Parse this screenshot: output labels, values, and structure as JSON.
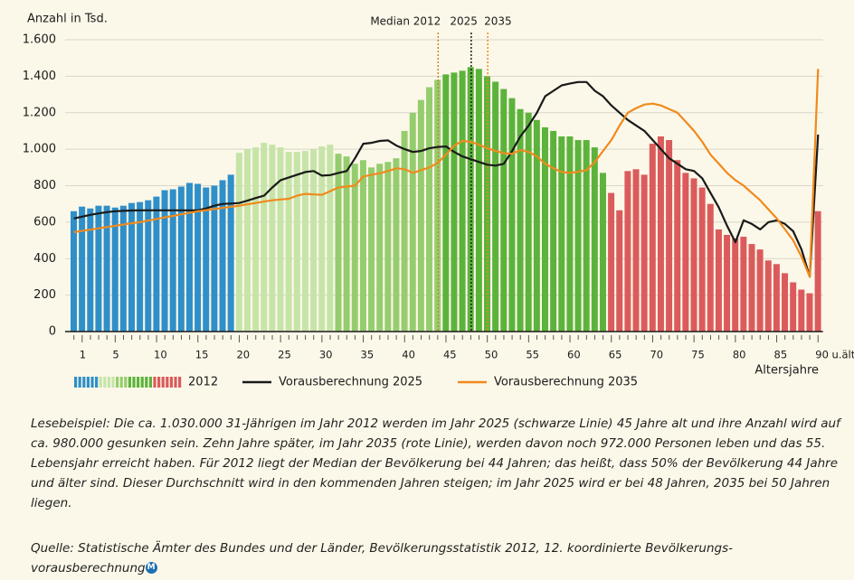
{
  "chart_data": {
    "type": "bar",
    "y_axis_label": "Anzahl in Tsd.",
    "x_axis_label": "Altersjahre",
    "ylim": [
      0,
      1600
    ],
    "yticks": [
      0,
      {
        "value": 200,
        "label": "200"
      },
      {
        "value": 400,
        "label": "400"
      },
      {
        "value": 600,
        "label": "600"
      },
      {
        "value": 800,
        "label": "800"
      },
      {
        "value": 1000,
        "label": "1.000"
      },
      {
        "value": 1200,
        "label": "1.200"
      },
      {
        "value": 1400,
        "label": "1.400"
      },
      {
        "value": 1600,
        "label": "1.600"
      }
    ],
    "grid": true,
    "categories": [
      null,
      "1",
      null,
      null,
      null,
      "5",
      null,
      null,
      null,
      null,
      "10",
      null,
      null,
      null,
      null,
      "15",
      null,
      null,
      null,
      null,
      "20",
      null,
      null,
      null,
      null,
      "25",
      null,
      null,
      null,
      null,
      "30",
      null,
      null,
      null,
      null,
      "35",
      null,
      null,
      null,
      null,
      "40",
      null,
      null,
      null,
      null,
      "45",
      null,
      null,
      null,
      null,
      "50",
      null,
      null,
      null,
      null,
      "55",
      null,
      null,
      null,
      null,
      "60",
      null,
      null,
      null,
      null,
      "65",
      null,
      null,
      null,
      null,
      "70",
      null,
      null,
      null,
      null,
      "75",
      null,
      null,
      null,
      null,
      "80",
      null,
      null,
      null,
      null,
      "85",
      null,
      null,
      null,
      null,
      "90 u.älter"
    ],
    "series": [
      {
        "name": "2012",
        "type": "bar",
        "values": [
          660,
          685,
          675,
          690,
          690,
          680,
          690,
          705,
          710,
          720,
          740,
          775,
          780,
          795,
          815,
          810,
          790,
          800,
          830,
          860,
          980,
          1000,
          1010,
          1035,
          1025,
          1010,
          985,
          985,
          990,
          1000,
          1015,
          1025,
          975,
          960,
          920,
          940,
          900,
          920,
          930,
          950,
          1100,
          1200,
          1270,
          1340,
          1380,
          1410,
          1420,
          1430,
          1450,
          1440,
          1400,
          1370,
          1330,
          1280,
          1220,
          1200,
          1160,
          1120,
          1100,
          1070,
          1070,
          1050,
          1050,
          1010,
          870,
          760,
          665,
          880,
          890,
          860,
          1030,
          1070,
          1050,
          940,
          870,
          840,
          790,
          700,
          560,
          530,
          510,
          520,
          480,
          450,
          390,
          370,
          320,
          270,
          230,
          210,
          660
        ],
        "colors": [
          "#2f8fc9",
          "#2f8fc9",
          "#2f8fc9",
          "#2f8fc9",
          "#2f8fc9",
          "#2f8fc9",
          "#2f8fc9",
          "#2f8fc9",
          "#2f8fc9",
          "#2f8fc9",
          "#2f8fc9",
          "#2f8fc9",
          "#2f8fc9",
          "#2f8fc9",
          "#2f8fc9",
          "#2f8fc9",
          "#2f8fc9",
          "#2f8fc9",
          "#2f8fc9",
          "#2f8fc9",
          "#c6e4a8",
          "#c6e4a8",
          "#c6e4a8",
          "#c6e4a8",
          "#c6e4a8",
          "#c6e4a8",
          "#c6e4a8",
          "#c6e4a8",
          "#c6e4a8",
          "#c6e4a8",
          "#c6e4a8",
          "#c6e4a8",
          "#95cd6e",
          "#95cd6e",
          "#95cd6e",
          "#95cd6e",
          "#95cd6e",
          "#95cd6e",
          "#95cd6e",
          "#95cd6e",
          "#95cd6e",
          "#95cd6e",
          "#95cd6e",
          "#95cd6e",
          "#95cd6e",
          "#5cb33c",
          "#5cb33c",
          "#5cb33c",
          "#5cb33c",
          "#5cb33c",
          "#5cb33c",
          "#5cb33c",
          "#5cb33c",
          "#5cb33c",
          "#5cb33c",
          "#5cb33c",
          "#5cb33c",
          "#5cb33c",
          "#5cb33c",
          "#5cb33c",
          "#5cb33c",
          "#5cb33c",
          "#5cb33c",
          "#5cb33c",
          "#5cb33c",
          "#db5b5c",
          "#db5b5c",
          "#db5b5c",
          "#db5b5c",
          "#db5b5c",
          "#db5b5c",
          "#db5b5c",
          "#db5b5c",
          "#db5b5c",
          "#db5b5c",
          "#db5b5c",
          "#db5b5c",
          "#db5b5c",
          "#db5b5c",
          "#db5b5c",
          "#db5b5c",
          "#db5b5c",
          "#db5b5c",
          "#db5b5c",
          "#db5b5c",
          "#db5b5c",
          "#db5b5c",
          "#db5b5c",
          "#db5b5c",
          "#db5b5c",
          "#db5b5c"
        ]
      },
      {
        "name": "Vorausberechnung 2025",
        "type": "line",
        "color": "#1a1a1a",
        "values": [
          620,
          630,
          640,
          648,
          655,
          660,
          662,
          664,
          665,
          665,
          665,
          665,
          665,
          665,
          665,
          665,
          675,
          690,
          700,
          702,
          705,
          718,
          732,
          745,
          790,
          830,
          845,
          860,
          875,
          880,
          855,
          858,
          870,
          880,
          950,
          1030,
          1035,
          1045,
          1048,
          1020,
          1000,
          985,
          990,
          1005,
          1012,
          1015,
          985,
          960,
          945,
          930,
          915,
          910,
          920,
          990,
          1070,
          1130,
          1200,
          1290,
          1320,
          1350,
          1360,
          1368,
          1368,
          1320,
          1290,
          1240,
          1200,
          1160,
          1130,
          1100,
          1050,
          1000,
          950,
          920,
          890,
          880,
          840,
          760,
          680,
          580,
          490,
          610,
          590,
          560,
          600,
          610,
          590,
          550,
          450,
          300,
          1080
        ]
      },
      {
        "name": "Vorausberechnung 2035",
        "type": "line",
        "color": "#f08a1c",
        "values": [
          545,
          552,
          559,
          566,
          573,
          580,
          587,
          594,
          600,
          609,
          617,
          626,
          634,
          643,
          651,
          660,
          666,
          672,
          678,
          684,
          690,
          698,
          705,
          713,
          720,
          724,
          728,
          745,
          755,
          752,
          750,
          770,
          790,
          795,
          800,
          850,
          860,
          868,
          880,
          895,
          890,
          870,
          885,
          900,
          925,
          970,
          1020,
          1045,
          1040,
          1025,
          1005,
          990,
          978,
          975,
          995,
          985,
          960,
          920,
          895,
          875,
          870,
          876,
          885,
          930,
          990,
          1050,
          1130,
          1200,
          1225,
          1245,
          1250,
          1240,
          1220,
          1200,
          1150,
          1100,
          1040,
          970,
          920,
          870,
          830,
          800,
          760,
          720,
          670,
          620,
          560,
          500,
          410,
          300,
          1440
        ]
      }
    ],
    "medians": [
      {
        "label": "Median 2012",
        "value": 44,
        "color": "#c8852a"
      },
      {
        "label": "2025",
        "value": 48,
        "color": "#1a1a1a"
      },
      {
        "label": "2035",
        "value": 50,
        "color": "#f08a1c"
      }
    ]
  },
  "notes": {
    "reading_example": "Lesebeispiel: Die ca. 1.030.000 31-Jährigen im Jahr 2012 werden im Jahr 2025 (schwarze Linie) 45 Jahre alt und ihre Anzahl wird auf ca. 980.000 gesunken sein. Zehn Jahre später, im Jahr 2035 (rote Linie), werden davon noch 972.000 Personen leben und das 55. Lebensjahr erreicht haben. Für 2012 liegt der Median der Bevölkerung bei 44 Jahren; das heißt, dass 50% der Bevölkerung 44 Jahre und älter sind. Dieser Durchschnitt wird in den kommenden Jahren steigen; im Jahr 2025 wird er bei 48 Jahren, 2035 bei 50 Jahren liegen.",
    "source": "Quelle: Statistische Ämter des Bundes und der Länder, Bevölkerungsstatistik 2012, 12. koordinierte Bevölkerungs-vorausberechnung"
  }
}
